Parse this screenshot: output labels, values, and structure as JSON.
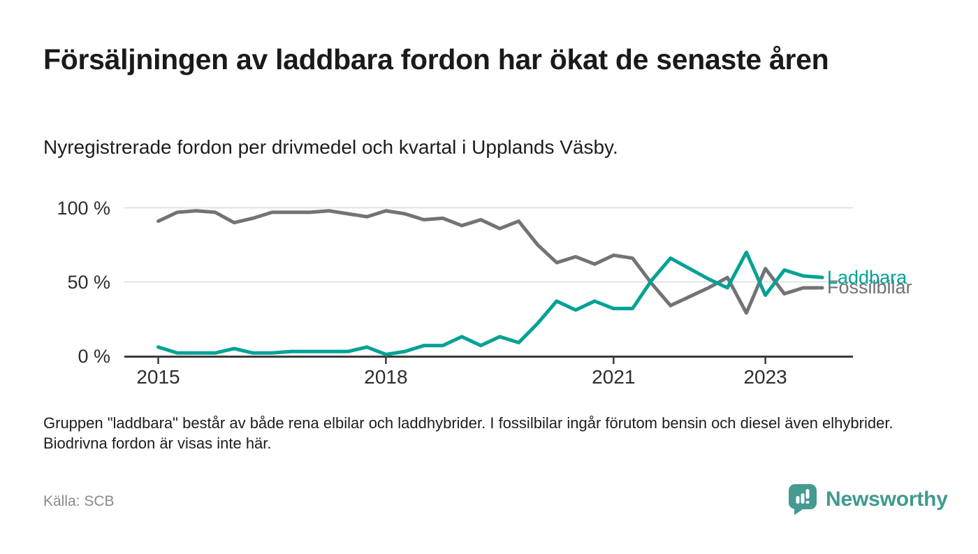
{
  "header": {
    "title": "Försäljningen av laddbara fordon har ökat de senaste åren",
    "subtitle": "Nyregistrerade fordon per drivmedel och kvartal i Upplands Väsby."
  },
  "chart_data": {
    "type": "line",
    "unit": "percent share of new registrations",
    "x_interval": "quarter",
    "x_start": "2015 Q1",
    "x_end": "2023 Q4",
    "ylim": [
      0,
      100
    ],
    "grid": "horizontal",
    "y_ticks": [
      {
        "label": "100 %",
        "value": 100
      },
      {
        "label": "50 %",
        "value": 50
      },
      {
        "label": "0 %",
        "value": 0
      }
    ],
    "x_ticks": [
      {
        "label": "2015",
        "q": 0
      },
      {
        "label": "2018",
        "q": 12
      },
      {
        "label": "2021",
        "q": 24
      },
      {
        "label": "2023",
        "q": 32
      }
    ],
    "series": [
      {
        "name": "Fossilbilar",
        "color": "#737377",
        "values": [
          91,
          97,
          98,
          97,
          90,
          93,
          97,
          97,
          97,
          98,
          96,
          94,
          98,
          96,
          92,
          93,
          88,
          92,
          86,
          91,
          75,
          63,
          67,
          62,
          68,
          66,
          49,
          34,
          40,
          46,
          53,
          29,
          59,
          42,
          46,
          46
        ]
      },
      {
        "name": "Laddbara",
        "color": "#00a295",
        "values": [
          6,
          2,
          2,
          2,
          5,
          2,
          2,
          3,
          3,
          3,
          3,
          6,
          1,
          3,
          7,
          7,
          13,
          7,
          13,
          9,
          22,
          37,
          31,
          37,
          32,
          32,
          51,
          66,
          59,
          52,
          46,
          70,
          41,
          58,
          54,
          53
        ]
      }
    ],
    "legend_position": "end-of-line labels at right"
  },
  "footer": {
    "note": "Gruppen \"laddbara\" består av både rena elbilar och laddhybrider. I fossilbilar ingår förutom bensin och diesel även elhybrider. Biodrivna fordon är visas inte här.",
    "source": "Källa: SCB",
    "brand": "Newsworthy"
  },
  "colors": {
    "accent_teal": "#00a295",
    "line_gray": "#737377",
    "grid_gray": "#dcdcdc",
    "axis_dark": "#3b3b3b",
    "logo_teal": "#459a92"
  }
}
